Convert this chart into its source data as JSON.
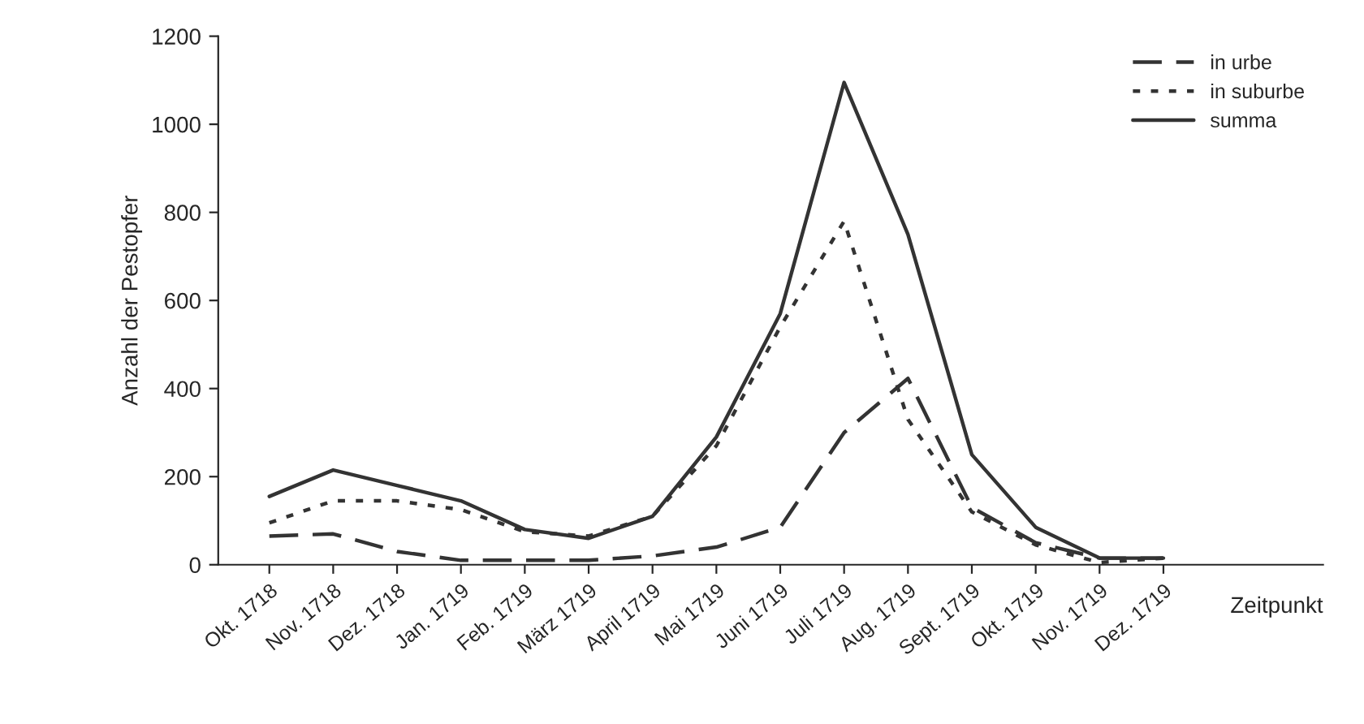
{
  "chart_data": {
    "type": "line",
    "xlabel": "Zeitpunkt",
    "ylabel": "Anzahl der Pestopfer",
    "categories": [
      "Okt. 1718",
      "Nov. 1718",
      "Dez. 1718",
      "Jan. 1719",
      "Feb. 1719",
      "März 1719",
      "April 1719",
      "Mai 1719",
      "Juni 1719",
      "Juli 1719",
      "Aug. 1719",
      "Sept. 1719",
      "Okt. 1719",
      "Nov. 1719",
      "Dez. 1719"
    ],
    "series": [
      {
        "name": "in urbe",
        "color": "#333333",
        "line_style": "dashed",
        "values": [
          65,
          70,
          30,
          10,
          10,
          10,
          20,
          40,
          85,
          300,
          423,
          130,
          50,
          15,
          15
        ]
      },
      {
        "name": "in suburbe",
        "color": "#333333",
        "line_style": "dotted",
        "values": [
          95,
          145,
          145,
          125,
          75,
          65,
          110,
          270,
          540,
          780,
          330,
          120,
          45,
          5,
          15
        ]
      },
      {
        "name": "summa",
        "color": "#333333",
        "line_style": "solid",
        "values": [
          155,
          215,
          180,
          145,
          80,
          60,
          110,
          290,
          570,
          1095,
          750,
          250,
          85,
          15,
          15
        ]
      }
    ],
    "ylim": [
      0,
      1200
    ],
    "yticks": [
      0,
      200,
      400,
      600,
      800,
      1000,
      1200
    ],
    "grid": false,
    "legend": "top right",
    "marker": "none"
  }
}
